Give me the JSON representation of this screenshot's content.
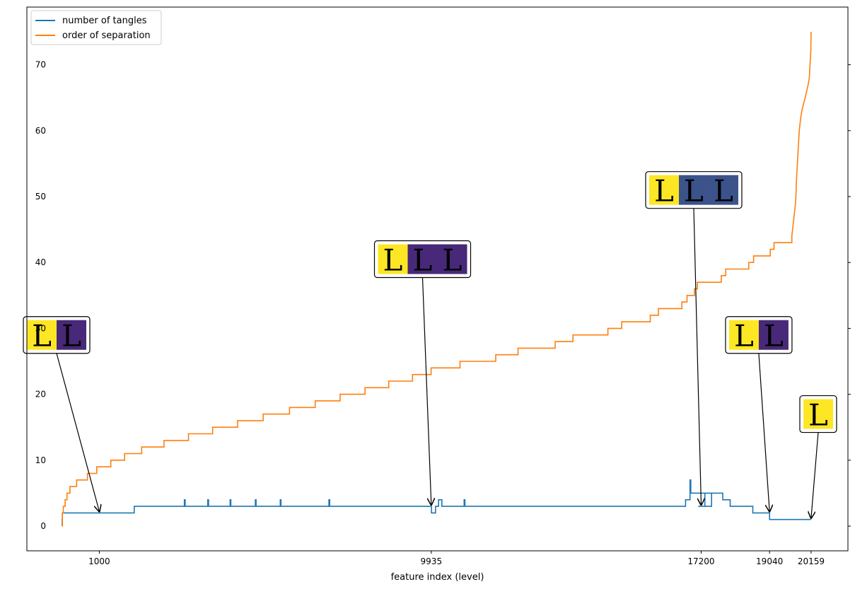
{
  "chart_data": {
    "type": "line",
    "xlabel": "feature index (level)",
    "ylabel": "",
    "xlim": [
      -950,
      21150
    ],
    "ylim": [
      -3.75,
      78.75
    ],
    "x_ticks": [
      1000,
      9935,
      17200,
      19040,
      20159
    ],
    "y_ticks": [
      0,
      10,
      20,
      30,
      40,
      50,
      60,
      70
    ],
    "legend_position": "upper-left",
    "grid": false,
    "series": [
      {
        "name": "number of tangles",
        "color": "#1f77b4",
        "points": [
          [
            0,
            0
          ],
          [
            0,
            1
          ],
          [
            5,
            1
          ],
          [
            5,
            2
          ],
          [
            1940,
            2
          ],
          [
            1940,
            3
          ],
          [
            3290,
            3
          ],
          [
            3290,
            4
          ],
          [
            3310,
            4
          ],
          [
            3310,
            3
          ],
          [
            3920,
            3
          ],
          [
            3920,
            4
          ],
          [
            3940,
            4
          ],
          [
            3940,
            3
          ],
          [
            4520,
            3
          ],
          [
            4520,
            4
          ],
          [
            4540,
            4
          ],
          [
            4540,
            3
          ],
          [
            5200,
            3
          ],
          [
            5200,
            4
          ],
          [
            5220,
            4
          ],
          [
            5220,
            3
          ],
          [
            5870,
            3
          ],
          [
            5870,
            4
          ],
          [
            5890,
            4
          ],
          [
            5890,
            3
          ],
          [
            7180,
            3
          ],
          [
            7180,
            4
          ],
          [
            7200,
            4
          ],
          [
            7200,
            3
          ],
          [
            9940,
            3
          ],
          [
            9940,
            2
          ],
          [
            10050,
            2
          ],
          [
            10050,
            3
          ],
          [
            10130,
            3
          ],
          [
            10130,
            4
          ],
          [
            10220,
            4
          ],
          [
            10220,
            3
          ],
          [
            10820,
            3
          ],
          [
            10820,
            4
          ],
          [
            10840,
            4
          ],
          [
            10840,
            3
          ],
          [
            16780,
            3
          ],
          [
            16780,
            4
          ],
          [
            16900,
            4
          ],
          [
            16900,
            7
          ],
          [
            16920,
            7
          ],
          [
            16920,
            5
          ],
          [
            17110,
            5
          ],
          [
            17110,
            5
          ],
          [
            17480,
            5
          ],
          [
            17480,
            3
          ],
          [
            17120,
            3
          ],
          [
            17120,
            3
          ],
          [
            17300,
            3
          ],
          [
            17300,
            5
          ],
          [
            17780,
            5
          ],
          [
            17780,
            4
          ],
          [
            17980,
            4
          ],
          [
            17980,
            3
          ],
          [
            18590,
            3
          ],
          [
            18590,
            2
          ],
          [
            19040,
            2
          ],
          [
            19040,
            1
          ],
          [
            20159,
            1
          ]
        ]
      },
      {
        "name": "order of separation",
        "color": "#ff7f0e",
        "points": [
          [
            0,
            0
          ],
          [
            5,
            0
          ],
          [
            5,
            2
          ],
          [
            30,
            2
          ],
          [
            30,
            3
          ],
          [
            80,
            3
          ],
          [
            80,
            4
          ],
          [
            130,
            4
          ],
          [
            130,
            5
          ],
          [
            210,
            5
          ],
          [
            210,
            6
          ],
          [
            390,
            6
          ],
          [
            390,
            7
          ],
          [
            680,
            7
          ],
          [
            680,
            8
          ],
          [
            930,
            8
          ],
          [
            930,
            9
          ],
          [
            1310,
            9
          ],
          [
            1310,
            10
          ],
          [
            1680,
            10
          ],
          [
            1680,
            11
          ],
          [
            2140,
            11
          ],
          [
            2140,
            12
          ],
          [
            2740,
            12
          ],
          [
            2740,
            13
          ],
          [
            3400,
            13
          ],
          [
            3400,
            14
          ],
          [
            4050,
            14
          ],
          [
            4050,
            15
          ],
          [
            4720,
            15
          ],
          [
            4720,
            16
          ],
          [
            5410,
            16
          ],
          [
            5410,
            17
          ],
          [
            6120,
            17
          ],
          [
            6120,
            18
          ],
          [
            6810,
            18
          ],
          [
            6810,
            19
          ],
          [
            7480,
            19
          ],
          [
            7480,
            20
          ],
          [
            8150,
            20
          ],
          [
            8150,
            21
          ],
          [
            8790,
            21
          ],
          [
            8790,
            22
          ],
          [
            9430,
            22
          ],
          [
            9430,
            23
          ],
          [
            9930,
            23
          ],
          [
            9930,
            24
          ],
          [
            10710,
            24
          ],
          [
            10710,
            25
          ],
          [
            11670,
            25
          ],
          [
            11670,
            26
          ],
          [
            12270,
            26
          ],
          [
            12270,
            27
          ],
          [
            13270,
            27
          ],
          [
            13270,
            28
          ],
          [
            13750,
            28
          ],
          [
            13750,
            29
          ],
          [
            14690,
            29
          ],
          [
            14690,
            30
          ],
          [
            15060,
            30
          ],
          [
            15060,
            31
          ],
          [
            15830,
            31
          ],
          [
            15830,
            32
          ],
          [
            16050,
            32
          ],
          [
            16050,
            33
          ],
          [
            16680,
            33
          ],
          [
            16680,
            34
          ],
          [
            16820,
            34
          ],
          [
            16820,
            35
          ],
          [
            17020,
            35
          ],
          [
            17020,
            36
          ],
          [
            17100,
            36
          ],
          [
            17100,
            37
          ],
          [
            17740,
            37
          ],
          [
            17740,
            38
          ],
          [
            17860,
            38
          ],
          [
            17860,
            39
          ],
          [
            18480,
            39
          ],
          [
            18480,
            40
          ],
          [
            18610,
            40
          ],
          [
            18610,
            41
          ],
          [
            19060,
            41
          ],
          [
            19060,
            42
          ],
          [
            19160,
            42
          ],
          [
            19160,
            43
          ],
          [
            19640,
            43
          ],
          [
            19640,
            44
          ],
          [
            19660,
            45
          ],
          [
            19680,
            46
          ],
          [
            19700,
            47
          ],
          [
            19720,
            48
          ],
          [
            19740,
            49
          ],
          [
            19750,
            50
          ],
          [
            19760,
            52
          ],
          [
            19780,
            54
          ],
          [
            19800,
            56
          ],
          [
            19820,
            58
          ],
          [
            19840,
            60
          ],
          [
            19860,
            61
          ],
          [
            19880,
            62
          ],
          [
            19910,
            63
          ],
          [
            19950,
            64
          ],
          [
            20000,
            65
          ],
          [
            20040,
            66
          ],
          [
            20080,
            67
          ],
          [
            20110,
            68
          ],
          [
            20130,
            70
          ],
          [
            20150,
            72
          ],
          [
            20159,
            75
          ]
        ]
      }
    ],
    "annotations": [
      {
        "target": [
          1000,
          2
        ],
        "letter_panels": [
          "#fde725",
          "#482878"
        ],
        "letter_colors": [
          "#46327e",
          "#fde725"
        ],
        "box_center": [
          -150,
          29
        ]
      },
      {
        "target": [
          9935,
          3
        ],
        "letter_panels": [
          "#fde725",
          "#482878",
          "#482878"
        ],
        "letter_colors": [
          "#46327e",
          "#fde725",
          "#21918c"
        ],
        "box_center": [
          9700,
          40.5
        ]
      },
      {
        "target": [
          17200,
          3
        ],
        "letter_panels": [
          "#fde725",
          "#3b528b",
          "#3b528b"
        ],
        "letter_colors": [
          "#3b528b",
          "#5ec962",
          "#5ec962"
        ],
        "box_center": [
          17000,
          51
        ]
      },
      {
        "target": [
          19040,
          2
        ],
        "letter_panels": [
          "#fde725",
          "#482878"
        ],
        "letter_colors": [
          "#46327e",
          "#21918c"
        ],
        "box_center": [
          18750,
          29
        ]
      },
      {
        "target": [
          20159,
          1
        ],
        "letter_panels": [
          "#fde725"
        ],
        "letter_colors": [
          "#46327e"
        ],
        "box_center": [
          20350,
          17
        ]
      }
    ]
  }
}
